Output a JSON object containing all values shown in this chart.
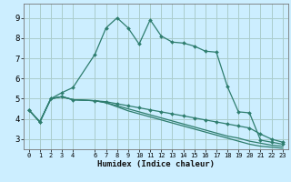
{
  "title": "",
  "xlabel": "Humidex (Indice chaleur)",
  "background_color": "#cceeff",
  "grid_color": "#aacccc",
  "line_color": "#2e7d6e",
  "xlim": [
    -0.5,
    23.5
  ],
  "ylim": [
    2.5,
    9.7
  ],
  "xtick_positions": [
    0,
    1,
    2,
    3,
    4,
    6,
    7,
    8,
    9,
    10,
    11,
    12,
    13,
    14,
    15,
    16,
    17,
    18,
    19,
    20,
    21,
    22,
    23
  ],
  "xtick_labels": [
    "0",
    "1",
    "2",
    "3",
    "4",
    "6",
    "7",
    "8",
    "9",
    "10",
    "11",
    "12",
    "13",
    "14",
    "15",
    "16",
    "17",
    "18",
    "19",
    "20",
    "21",
    "22",
    "23"
  ],
  "ytick_positions": [
    3,
    4,
    5,
    6,
    7,
    8,
    9
  ],
  "ytick_labels": [
    "3",
    "4",
    "5",
    "6",
    "7",
    "8",
    "9"
  ],
  "line1_x": [
    0,
    1,
    2,
    3,
    4,
    6,
    7,
    8,
    9,
    10,
    11,
    12,
    13,
    14,
    15,
    16,
    17,
    18,
    19,
    20,
    21,
    22,
    23
  ],
  "line1_y": [
    4.45,
    3.85,
    5.0,
    5.3,
    5.55,
    7.2,
    8.5,
    9.0,
    8.5,
    7.7,
    8.9,
    8.1,
    7.8,
    7.75,
    7.6,
    7.35,
    7.3,
    5.6,
    4.35,
    4.3,
    2.95,
    2.85,
    2.75
  ],
  "line2_x": [
    0,
    1,
    2,
    3,
    4,
    6,
    7,
    8,
    9,
    10,
    11,
    12,
    13,
    14,
    15,
    16,
    17,
    18,
    19,
    20,
    21,
    22,
    23
  ],
  "line2_y": [
    4.45,
    3.85,
    5.0,
    5.1,
    4.95,
    4.9,
    4.85,
    4.75,
    4.65,
    4.55,
    4.45,
    4.35,
    4.25,
    4.15,
    4.05,
    3.95,
    3.85,
    3.75,
    3.65,
    3.55,
    3.25,
    3.0,
    2.85
  ],
  "line3_x": [
    0,
    1,
    2,
    3,
    4,
    6,
    7,
    8,
    9,
    10,
    11,
    12,
    13,
    14,
    15,
    16,
    17,
    18,
    19,
    20,
    21,
    22,
    23
  ],
  "line3_y": [
    4.45,
    3.85,
    5.0,
    5.1,
    4.95,
    4.9,
    4.8,
    4.65,
    4.5,
    4.35,
    4.2,
    4.05,
    3.9,
    3.75,
    3.6,
    3.45,
    3.3,
    3.15,
    3.05,
    2.9,
    2.8,
    2.7,
    2.65
  ],
  "line4_x": [
    0,
    1,
    2,
    3,
    4,
    6,
    7,
    8,
    9,
    10,
    11,
    12,
    13,
    14,
    15,
    16,
    17,
    18,
    19,
    20,
    21,
    22,
    23
  ],
  "line4_y": [
    4.45,
    3.85,
    5.0,
    5.1,
    4.95,
    4.9,
    4.8,
    4.6,
    4.4,
    4.25,
    4.1,
    3.95,
    3.8,
    3.65,
    3.5,
    3.35,
    3.2,
    3.05,
    2.9,
    2.75,
    2.65,
    2.6,
    2.55
  ]
}
